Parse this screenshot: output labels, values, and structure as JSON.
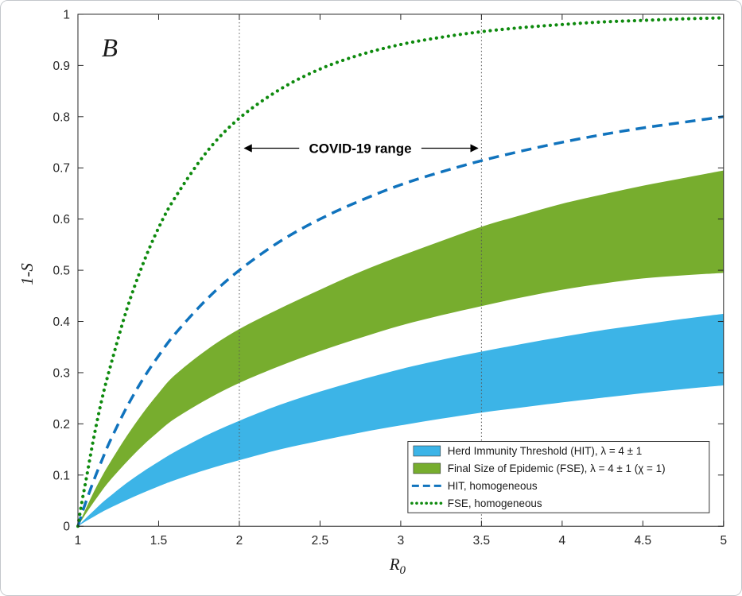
{
  "chart_data": {
    "type": "line",
    "panel_label": "B",
    "xlabel_main": "R",
    "xlabel_sub": "0",
    "ylabel": "1-S",
    "xlim": [
      1,
      5
    ],
    "ylim": [
      0,
      1
    ],
    "grid": false,
    "x_ticks": [
      1,
      1.5,
      2,
      2.5,
      3,
      3.5,
      4,
      4.5,
      5
    ],
    "x_tick_labels": [
      "1",
      "1.5",
      "2",
      "2.5",
      "3",
      "3.5",
      "4",
      "4.5",
      "5"
    ],
    "y_ticks": [
      0,
      0.1,
      0.2,
      0.3,
      0.4,
      0.5,
      0.6,
      0.7,
      0.8,
      0.9,
      1
    ],
    "y_tick_labels": [
      "0",
      "0.1",
      "0.2",
      "0.3",
      "0.4",
      "0.5",
      "0.6",
      "0.7",
      "0.8",
      "0.9",
      "1"
    ],
    "annotation": {
      "text": "COVID-19 range",
      "x_from": 2,
      "x_to": 3.5,
      "y": 0.738
    },
    "covid_range_lines": [
      2,
      3.5
    ],
    "bands": [
      {
        "name": "Herd Immunity Threshold (HIT), λ = 4 ± 1",
        "color": "#3cb4e7",
        "x": [
          1,
          1.05,
          1.1,
          1.15,
          1.2,
          1.3,
          1.4,
          1.5,
          1.6,
          1.8,
          2,
          2.25,
          2.5,
          2.75,
          3,
          3.25,
          3.5,
          3.75,
          4,
          4.25,
          4.5,
          4.75,
          5
        ],
        "upper": [
          0,
          0.016,
          0.031,
          0.046,
          0.059,
          0.084,
          0.106,
          0.126,
          0.145,
          0.178,
          0.206,
          0.237,
          0.263,
          0.286,
          0.307,
          0.325,
          0.341,
          0.356,
          0.37,
          0.383,
          0.394,
          0.405,
          0.415
        ],
        "lower": [
          0,
          0.01,
          0.019,
          0.028,
          0.036,
          0.051,
          0.065,
          0.078,
          0.09,
          0.111,
          0.129,
          0.15,
          0.167,
          0.183,
          0.197,
          0.21,
          0.222,
          0.232,
          0.242,
          0.251,
          0.26,
          0.268,
          0.275
        ]
      },
      {
        "name": "Final Size of Epidemic (FSE), λ = 4 ± 1 (χ = 1)",
        "color": "#77ad2e",
        "x": [
          1,
          1.05,
          1.1,
          1.15,
          1.2,
          1.3,
          1.4,
          1.5,
          1.6,
          1.8,
          2,
          2.25,
          2.5,
          2.75,
          3,
          3.25,
          3.5,
          3.75,
          4,
          4.25,
          4.5,
          4.75,
          5
        ],
        "upper": [
          0,
          0.035,
          0.068,
          0.098,
          0.125,
          0.175,
          0.22,
          0.26,
          0.295,
          0.345,
          0.385,
          0.425,
          0.462,
          0.497,
          0.528,
          0.557,
          0.585,
          0.608,
          0.63,
          0.648,
          0.665,
          0.68,
          0.695
        ],
        "lower": [
          0,
          0.025,
          0.048,
          0.07,
          0.09,
          0.125,
          0.157,
          0.185,
          0.21,
          0.248,
          0.28,
          0.313,
          0.342,
          0.368,
          0.392,
          0.412,
          0.43,
          0.447,
          0.462,
          0.474,
          0.484,
          0.49,
          0.495
        ]
      }
    ],
    "lines": [
      {
        "name": "HIT, homogeneous",
        "color": "#1073bd",
        "style": "dashed",
        "x": [
          1,
          1.02,
          1.05,
          1.1,
          1.15,
          1.2,
          1.3,
          1.4,
          1.5,
          1.6,
          1.8,
          2,
          2.25,
          2.5,
          2.75,
          3,
          3.25,
          3.5,
          3.75,
          4,
          4.25,
          4.5,
          4.75,
          5
        ],
        "y": [
          0,
          0.02,
          0.048,
          0.091,
          0.13,
          0.167,
          0.231,
          0.286,
          0.333,
          0.375,
          0.444,
          0.5,
          0.556,
          0.6,
          0.636,
          0.667,
          0.692,
          0.714,
          0.733,
          0.75,
          0.765,
          0.778,
          0.789,
          0.8
        ]
      },
      {
        "name": "FSE, homogeneous",
        "color": "#0e8a0e",
        "style": "dotted",
        "x": [
          1,
          1.01,
          1.02,
          1.03,
          1.05,
          1.1,
          1.15,
          1.2,
          1.3,
          1.4,
          1.5,
          1.6,
          1.8,
          2,
          2.25,
          2.5,
          2.75,
          3,
          3.25,
          3.5,
          3.75,
          4,
          4.25,
          4.5,
          4.75,
          5
        ],
        "y": [
          0,
          0.02,
          0.039,
          0.057,
          0.09,
          0.176,
          0.25,
          0.311,
          0.421,
          0.51,
          0.583,
          0.641,
          0.732,
          0.797,
          0.853,
          0.893,
          0.921,
          0.941,
          0.955,
          0.966,
          0.974,
          0.98,
          0.985,
          0.988,
          0.991,
          0.993
        ]
      }
    ],
    "legend": {
      "position": "lower-right",
      "entries": [
        {
          "type": "patch",
          "color": "#3cb4e7",
          "label": "Herd Immunity Threshold (HIT), λ = 4 ± 1"
        },
        {
          "type": "patch",
          "color": "#77ad2e",
          "label": "Final Size of Epidemic (FSE), λ = 4 ± 1 (χ = 1)"
        },
        {
          "type": "dashed",
          "color": "#1073bd",
          "label": "HIT, homogeneous"
        },
        {
          "type": "dotted",
          "color": "#0e8a0e",
          "label": "FSE, homogeneous"
        }
      ]
    },
    "colors": {
      "axis": "#262626",
      "vline": "#555555",
      "legend_border": "#333333",
      "background": "#ffffff"
    }
  }
}
